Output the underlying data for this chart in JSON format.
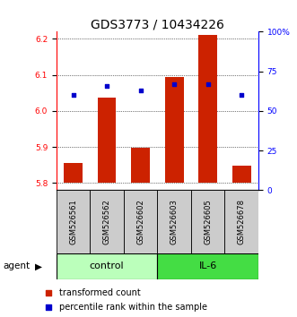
{
  "title": "GDS3773 / 10434226",
  "samples": [
    "GSM526561",
    "GSM526562",
    "GSM526602",
    "GSM526603",
    "GSM526605",
    "GSM526678"
  ],
  "groups": [
    "control",
    "control",
    "control",
    "IL-6",
    "IL-6",
    "IL-6"
  ],
  "bar_bottoms": [
    5.8,
    5.8,
    5.8,
    5.8,
    5.8,
    5.8
  ],
  "bar_tops": [
    5.856,
    6.037,
    5.897,
    6.095,
    6.21,
    5.848
  ],
  "percentile_values": [
    60,
    66,
    63,
    67,
    67,
    60
  ],
  "ylim_left": [
    5.78,
    6.22
  ],
  "ylim_right": [
    0,
    100
  ],
  "yticks_left": [
    5.8,
    5.9,
    6.0,
    6.1,
    6.2
  ],
  "yticks_right": [
    0,
    25,
    50,
    75,
    100
  ],
  "ytick_labels_right": [
    "0",
    "25",
    "50",
    "75",
    "100%"
  ],
  "bar_color": "#cc2200",
  "dot_color": "#0000cc",
  "control_color": "#bbffbb",
  "il6_color": "#44dd44",
  "group_label_fontsize": 8,
  "tick_label_fontsize": 6.5,
  "sample_fontsize": 6,
  "title_fontsize": 10,
  "legend_fontsize": 7
}
